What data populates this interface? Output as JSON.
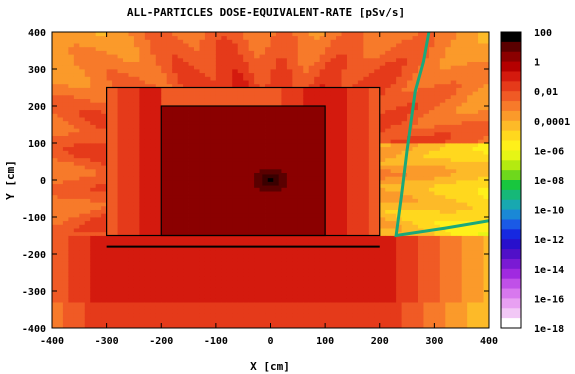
{
  "chart_data": {
    "type": "heatmap",
    "title": "ALL-PARTICLES DOSE-EQUIVALENT-RATE [pSv/s]",
    "xlabel": "X [cm]",
    "ylabel": "Y [cm]",
    "xlim": [
      -400,
      400
    ],
    "ylim": [
      -400,
      400
    ],
    "x_ticks": [
      "-400",
      "-300",
      "-200",
      "-100",
      "0",
      "100",
      "200",
      "300",
      "400"
    ],
    "x_tick_values": [
      -400,
      -300,
      -200,
      -100,
      0,
      100,
      200,
      300,
      400
    ],
    "y_ticks": [
      "400",
      "300",
      "200",
      "100",
      "0",
      "-100",
      "-200",
      "-300",
      "-400"
    ],
    "y_tick_values": [
      400,
      300,
      200,
      100,
      0,
      -100,
      -200,
      -300,
      -400
    ],
    "colorbar": {
      "scale": "log",
      "range": [
        1e-18,
        100
      ],
      "tick_labels": [
        "100",
        "1",
        "0,01",
        "0,0001",
        "1e-06",
        "1e-08",
        "1e-10",
        "1e-12",
        "1e-14",
        "1e-16",
        "1e-18"
      ],
      "tick_exponents": [
        2,
        0,
        -2,
        -4,
        -6,
        -8,
        -10,
        -12,
        -14,
        -16,
        -18
      ],
      "colors_top_to_bottom": [
        "#000000",
        "#5a0000",
        "#8b0000",
        "#b50000",
        "#d41a0e",
        "#e53a1a",
        "#f05a25",
        "#f77a2a",
        "#fb9a2a",
        "#fdba28",
        "#ffd81e",
        "#fff01a",
        "#e6f515",
        "#b4ea10",
        "#6ed81c",
        "#18c63e",
        "#16b878",
        "#18a8b0",
        "#1a88d6",
        "#1a5ae6",
        "#1628e0",
        "#2810cc",
        "#5010c8",
        "#7a1ad4",
        "#a02ae0",
        "#c050e8",
        "#d878ee",
        "#e8a0f2",
        "#f2c8f6",
        "#ffffff"
      ]
    },
    "geometry_outlines": [
      {
        "name": "outer box",
        "x": [
          -300,
          200
        ],
        "y": [
          -150,
          250
        ]
      },
      {
        "name": "inner box",
        "x": [
          -200,
          100
        ],
        "y": [
          -150,
          200
        ]
      },
      {
        "name": "lower slab line",
        "x": [
          -300,
          200
        ],
        "y": [
          -180,
          -180
        ]
      }
    ],
    "source_position": [
      0,
      0
    ],
    "grid": false,
    "legend": "colorbar-right"
  }
}
